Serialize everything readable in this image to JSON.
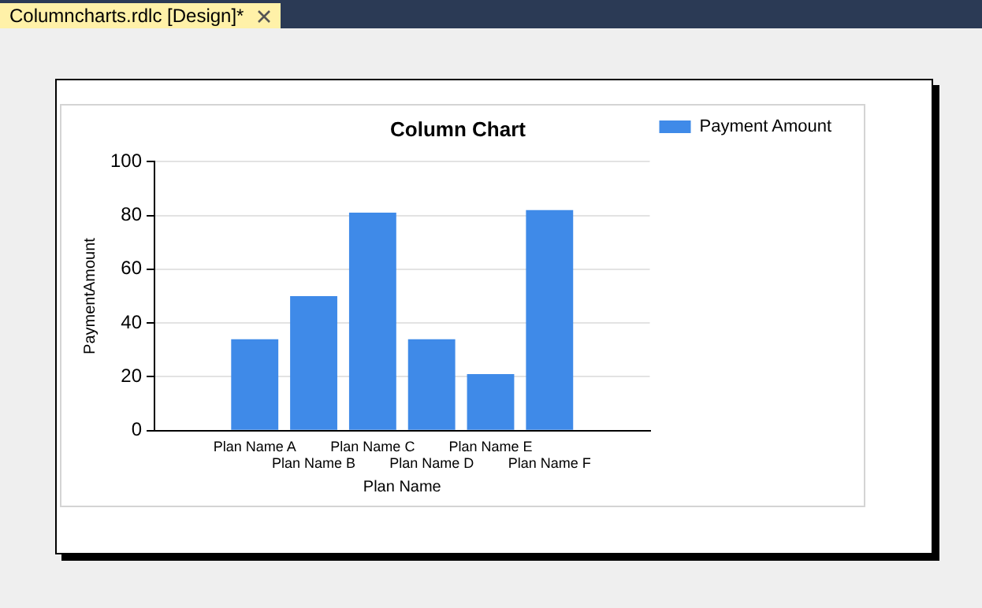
{
  "chart_data": {
    "type": "bar",
    "title": "Column Chart",
    "xlabel": "Plan Name",
    "ylabel": "PaymentAmount",
    "categories": [
      "Plan Name A",
      "Plan Name B",
      "Plan Name C",
      "Plan Name D",
      "Plan Name E",
      "Plan Name F"
    ],
    "series": [
      {
        "name": "Payment Amount",
        "color": "#3f8ae8",
        "values": [
          34,
          50,
          81,
          34,
          21,
          82
        ]
      }
    ],
    "ylim": [
      0,
      100
    ],
    "yticks": [
      0,
      20,
      40,
      60,
      80,
      100
    ],
    "grid": "y",
    "legend": "top right",
    "annotations": [
      "Columncharts.rdlc [Design]*"
    ]
  }
}
